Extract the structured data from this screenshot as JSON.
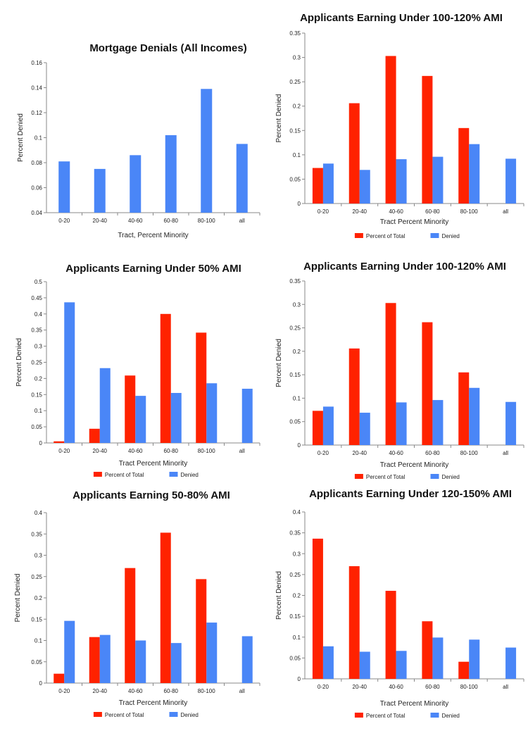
{
  "colors": {
    "red": "#ff2200",
    "blue": "#4a86f7",
    "axis": "#888888",
    "grid": "#c8c8c8"
  },
  "chart_data": [
    {
      "type": "bar",
      "title": "Mortgage Denials (All Incomes)",
      "xlabel": "Tract, Percent Minority",
      "ylabel": "Percent Denied",
      "categories": [
        "0-20",
        "20-40",
        "40-60",
        "60-80",
        "80-100",
        "all"
      ],
      "ylim": [
        0.04,
        0.16
      ],
      "yticks": [
        "0.04",
        "0.06",
        "0.08",
        "0.1",
        "0.12",
        "0.14",
        "0.16"
      ],
      "legend_position": "none",
      "series": [
        {
          "name": "Denied",
          "color": "blue",
          "values": [
            0.081,
            0.075,
            0.086,
            0.102,
            0.139,
            0.095
          ]
        }
      ]
    },
    {
      "type": "bar",
      "title": "Applicants Earning Under 100-120% AMI",
      "xlabel": "Tract Percent Minority",
      "ylabel": "Percent Denied",
      "categories": [
        "0-20",
        "20-40",
        "40-60",
        "60-80",
        "80-100",
        "all"
      ],
      "ylim": [
        0,
        0.35
      ],
      "yticks": [
        "0",
        "0.05",
        "0.1",
        "0.15",
        "0.2",
        "0.25",
        "0.3",
        "0.35"
      ],
      "legend_position": "bottom",
      "series": [
        {
          "name": "Percent of Total",
          "color": "red",
          "values": [
            0.073,
            0.206,
            0.303,
            0.262,
            0.155,
            null
          ]
        },
        {
          "name": "Denied",
          "color": "blue",
          "values": [
            0.082,
            0.069,
            0.091,
            0.096,
            0.122,
            0.092
          ]
        }
      ]
    },
    {
      "type": "bar",
      "title": "Applicants Earning Under 50% AMI",
      "xlabel": "Tract Percent Minority",
      "ylabel": "Percent Denied",
      "categories": [
        "0-20",
        "20-40",
        "40-60",
        "60-80",
        "80-100",
        "all"
      ],
      "ylim": [
        0,
        0.5
      ],
      "yticks": [
        "0",
        "0.05",
        "0.1",
        "0.15",
        "0.2",
        "0.25",
        "0.3",
        "0.35",
        "0.4",
        "0.45",
        "0.5"
      ],
      "legend_position": "bottom",
      "series": [
        {
          "name": "Percent of Total",
          "color": "red",
          "values": [
            0.005,
            0.044,
            0.209,
            0.4,
            0.342,
            null
          ]
        },
        {
          "name": "Denied",
          "color": "blue",
          "values": [
            0.436,
            0.232,
            0.146,
            0.155,
            0.185,
            0.168
          ]
        }
      ]
    },
    {
      "type": "bar",
      "title": "Applicants Earning Under 100-120% AMI",
      "xlabel": "Tract Percent Minority",
      "ylabel": "Percent Denied",
      "categories": [
        "0-20",
        "20-40",
        "40-60",
        "60-80",
        "80-100",
        "all"
      ],
      "ylim": [
        0,
        0.35
      ],
      "yticks": [
        "0",
        "0.05",
        "0.1",
        "0.15",
        "0.2",
        "0.25",
        "0.3",
        "0.35"
      ],
      "legend_position": "bottom",
      "series": [
        {
          "name": "Percent of Total",
          "color": "red",
          "values": [
            0.073,
            0.206,
            0.303,
            0.262,
            0.155,
            null
          ]
        },
        {
          "name": "Denied",
          "color": "blue",
          "values": [
            0.082,
            0.069,
            0.091,
            0.096,
            0.122,
            0.092
          ]
        }
      ]
    },
    {
      "type": "bar",
      "title": "Applicants Earning 50-80% AMI",
      "xlabel": "Tract Percent Minority",
      "ylabel": "Percent Denied",
      "categories": [
        "0-20",
        "20-40",
        "40-60",
        "60-80",
        "80-100",
        "all"
      ],
      "ylim": [
        0,
        0.4
      ],
      "yticks": [
        "0",
        "0.05",
        "0.1",
        "0.15",
        "0.2",
        "0.25",
        "0.3",
        "0.35",
        "0.4"
      ],
      "legend_position": "bottom",
      "series": [
        {
          "name": "Percent of Total",
          "color": "red",
          "values": [
            0.022,
            0.108,
            0.27,
            0.353,
            0.244,
            null
          ]
        },
        {
          "name": "Denied",
          "color": "blue",
          "values": [
            0.146,
            0.113,
            0.1,
            0.094,
            0.142,
            0.11
          ]
        }
      ]
    },
    {
      "type": "bar",
      "title": "Applicants Earning Under 120-150% AMI",
      "xlabel": "Tract Percent Minority",
      "ylabel": "Percent Denied",
      "categories": [
        "0-20",
        "20-40",
        "40-60",
        "60-80",
        "80-100",
        "all"
      ],
      "ylim": [
        0,
        0.4
      ],
      "yticks": [
        "0",
        "0.05",
        "0.1",
        "0.15",
        "0.2",
        "0.25",
        "0.3",
        "0.35",
        "0.4"
      ],
      "legend_position": "bottom",
      "series": [
        {
          "name": "Percent of Total",
          "color": "red",
          "values": [
            0.336,
            0.27,
            0.211,
            0.138,
            0.041,
            null
          ]
        },
        {
          "name": "Denied",
          "color": "blue",
          "values": [
            0.078,
            0.065,
            0.067,
            0.099,
            0.094,
            0.075
          ]
        }
      ]
    }
  ]
}
